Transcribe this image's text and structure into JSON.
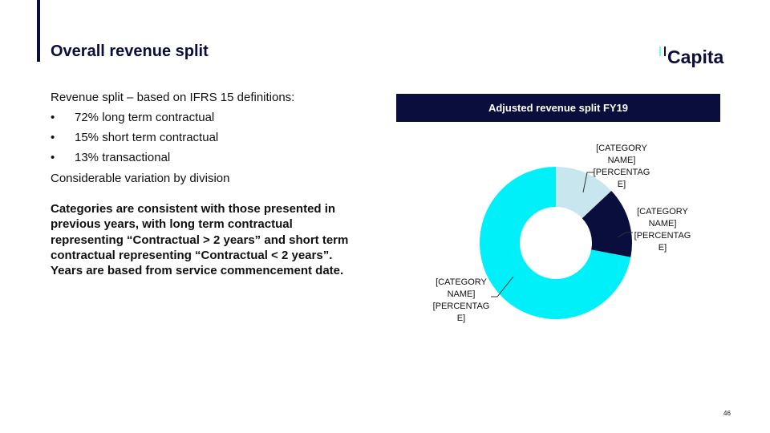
{
  "slide": {
    "title": "Overall revenue split",
    "intro": "Revenue split – based on IFRS 15 definitions:",
    "bullets": [
      "72% long term contractual",
      "15% short term contractual",
      "13% transactional"
    ],
    "note": "Considerable variation by division",
    "paragraph": "Categories are consistent with those presented in previous years, with long term contractual representing “Contractual > 2 years” and short term contractual representing “Contractual < 2 years”. Years are based from service commencement date.",
    "logo": "Capita",
    "page_number": "46"
  },
  "chart_data": {
    "type": "donut",
    "title": "Adjusted revenue split FY19",
    "values": [
      13,
      15,
      72
    ],
    "value_labels": [
      "[CATEGORY NAME] [PERCENTAGE]",
      "[CATEGORY NAME] [PERCENTAGE]",
      "[CATEGORY NAME] [PERCENTAGE]"
    ],
    "colors": [
      "#c7e6ee",
      "#0a0e3c",
      "#00f0fa"
    ]
  }
}
